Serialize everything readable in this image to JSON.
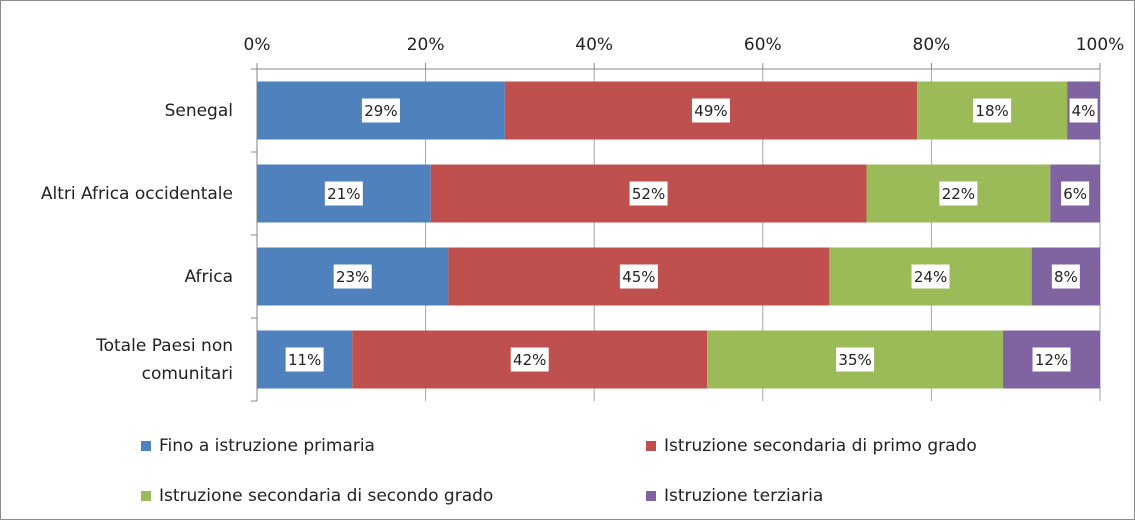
{
  "chart_data": {
    "type": "stacked_barh",
    "categories": [
      "Senegal",
      "Altri Africa occidentale",
      "Africa",
      "Totale Paesi non comunitari"
    ],
    "series": [
      {
        "name": "Fino a istruzione primaria",
        "color": "#4f81bd",
        "values": [
          29.4,
          20.6,
          22.7,
          11.3
        ],
        "value_labels": [
          "29%",
          "21%",
          "23%",
          "11%"
        ]
      },
      {
        "name": "Istruzione secondaria di primo grado",
        "color": "#c0504d",
        "values": [
          48.9,
          51.7,
          45.2,
          42.1
        ],
        "value_labels": [
          "49%",
          "52%",
          "45%",
          "42%"
        ]
      },
      {
        "name": "Istruzione secondaria di secondo grado",
        "color": "#9bbb59",
        "values": [
          17.8,
          21.8,
          24.0,
          35.1
        ],
        "value_labels": [
          "18%",
          "22%",
          "24%",
          "35%"
        ]
      },
      {
        "name": "Istruzione terziaria",
        "color": "#8064a2",
        "values": [
          3.9,
          5.9,
          8.1,
          11.5
        ],
        "value_labels": [
          "4%",
          "6%",
          "8%",
          "12%"
        ]
      }
    ],
    "xlim": [
      0,
      100
    ],
    "xticks": [
      {
        "value": 0,
        "label": "0%"
      },
      {
        "value": 20,
        "label": "20%"
      },
      {
        "value": 40,
        "label": "40%"
      },
      {
        "value": 60,
        "label": "60%"
      },
      {
        "value": 80,
        "label": "80%"
      },
      {
        "value": 100,
        "label": "100%"
      }
    ],
    "grid": true,
    "legend": "bottom"
  }
}
